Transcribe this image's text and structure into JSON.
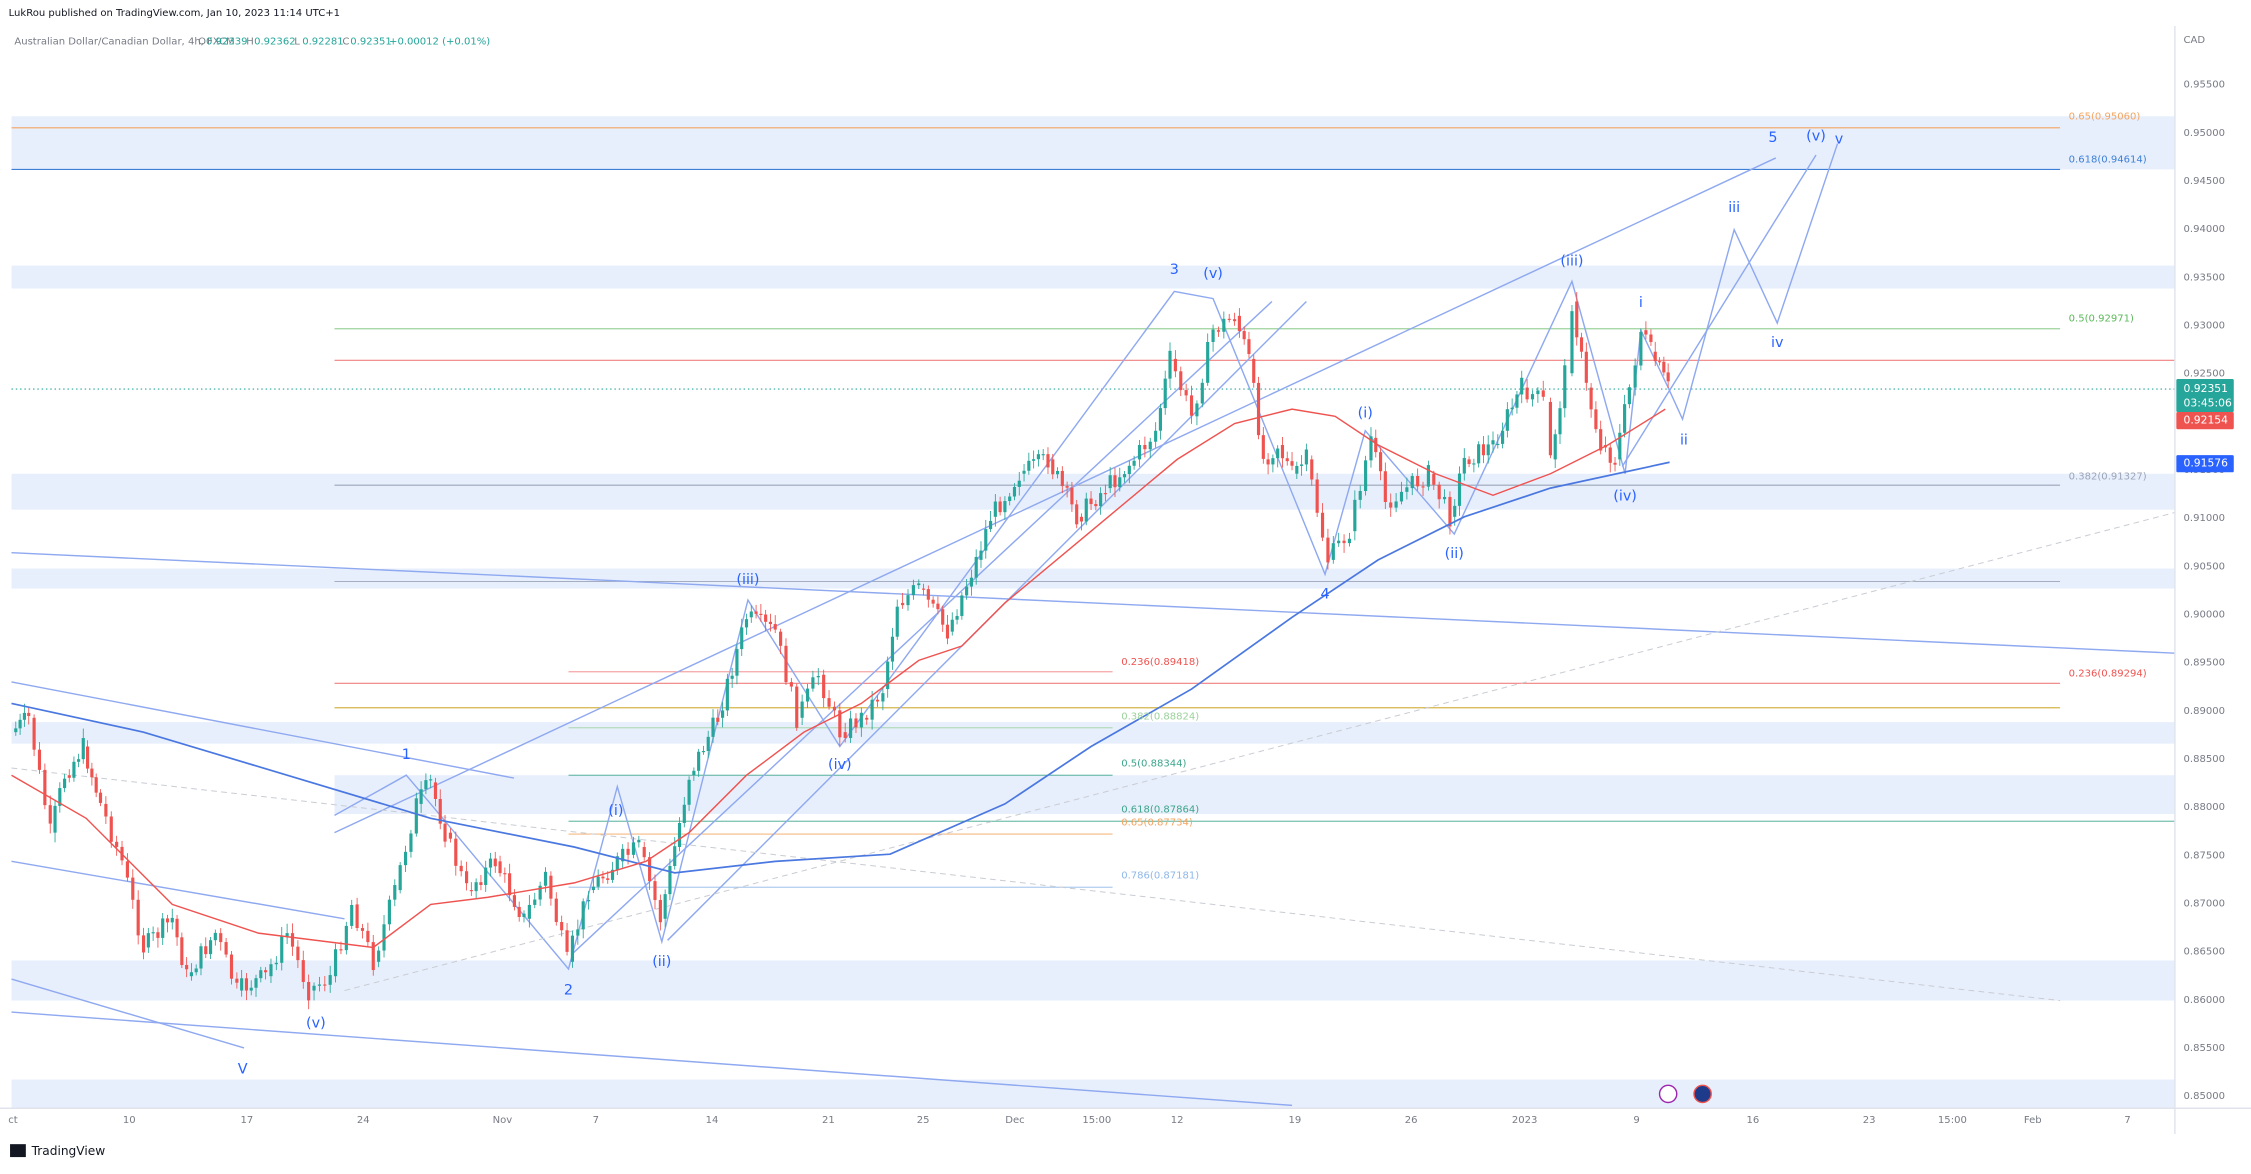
{
  "header": {
    "publisher": "LukRou published on TradingView.com, Jan 10, 2023 11:14 UTC+1",
    "symbol": "Australian Dollar/Canadian Dollar, 4h, FXCM",
    "ohlc": [
      {
        "key": "O",
        "value": "0.92339"
      },
      {
        "key": "H",
        "value": "0.92362"
      },
      {
        "key": "L",
        "value": "0.92281"
      },
      {
        "key": "C",
        "value": "0.92351"
      }
    ],
    "change": "+0.00012 (+0.01%)"
  },
  "price_axis": {
    "currency": "CAD",
    "labels": [
      "0.95500",
      "0.95000",
      "0.94500",
      "0.94000",
      "0.93500",
      "0.93000",
      "0.92500",
      "0.92000",
      "0.91500",
      "0.91000",
      "0.90500",
      "0.90000",
      "0.89500",
      "0.89000",
      "0.88500",
      "0.88000",
      "0.87500",
      "0.87000",
      "0.86500",
      "0.86000",
      "0.85500",
      "0.85000"
    ],
    "badges": {
      "last": "0.92351",
      "countdown": "03:45:06",
      "ma_red": "0.92154",
      "ma_blue": "0.91576"
    }
  },
  "time_axis": {
    "labels": [
      "ct",
      "10",
      "17",
      "24",
      "Nov",
      "7",
      "14",
      "21",
      "25",
      "Dec",
      "15:00",
      "12",
      "19",
      "26",
      "2023",
      "9",
      "16",
      "23",
      "15:00",
      "Feb",
      "7"
    ]
  },
  "fib_levels": {
    "right": [
      "0.65(0.95060)",
      "0.618(0.94614)",
      "0.5(0.92971)",
      "0.382(0.91327)",
      "0.236(0.89294)"
    ],
    "left": [
      "0.236(0.89418)",
      "0.382(0.88824)",
      "0.5(0.88344)",
      "0.618(0.87864)",
      "0.65(0.87734)",
      "0.786(0.87181)"
    ]
  },
  "wave_labels": [
    "V",
    "1",
    "2",
    "3",
    "4",
    "5",
    "(v)",
    "(i)",
    "(ii)",
    "(iii)",
    "(iv)",
    "(v)",
    "(i)",
    "(ii)",
    "(iii)",
    "(iv)",
    "i",
    "ii",
    "iii",
    "iv",
    "(v)",
    "v"
  ],
  "footer": {
    "brand": "TradingView"
  }
}
